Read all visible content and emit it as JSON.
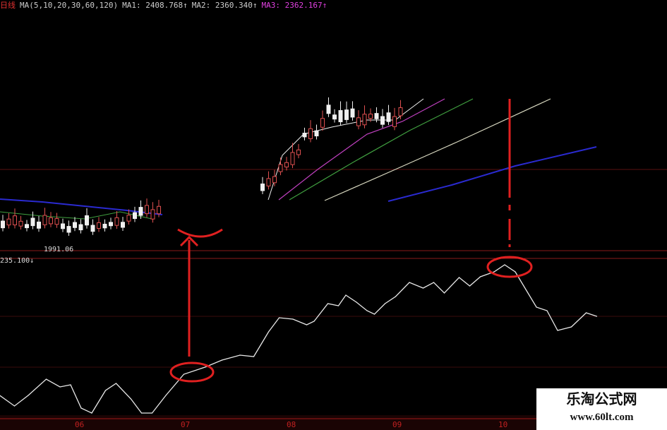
{
  "header": {
    "period": "日线",
    "ma_params": "MA(5,10,20,30,60,120)",
    "ma1": "MA1: 2408.768↑",
    "ma2": "MA2: 2360.340↑",
    "ma3": "MA3: 2362.167↑"
  },
  "annotations": {
    "low_price": "1991.06",
    "indicator_value": "235.100↓"
  },
  "colors": {
    "background": "#000000",
    "axis": "#a01818",
    "marker": "#e02020",
    "line": "#e8e8e8",
    "ma_blue": "#2a2ad0",
    "ma_green": "#40a040",
    "ma_magenta": "#c040c0"
  },
  "chart_data": {
    "type": "line",
    "title": "",
    "xlabel": "",
    "ylabel": "",
    "x_tick_labels": [
      "06",
      "07",
      "08",
      "09",
      "10"
    ],
    "x_ticks": [
      6,
      7,
      8,
      9,
      10
    ],
    "grid": false,
    "series": [
      {
        "x": [
          5.25,
          5.39,
          5.52,
          5.69,
          5.82,
          5.92,
          6.02,
          6.12,
          6.25,
          6.35,
          6.49,
          6.59,
          6.69,
          6.82,
          6.99,
          7.19,
          7.35,
          7.52,
          7.65,
          7.79,
          7.89,
          8.02,
          8.15,
          8.22,
          8.35,
          8.45,
          8.52,
          8.62,
          8.72,
          8.79,
          8.89,
          8.99,
          9.12,
          9.25,
          9.35,
          9.45,
          9.59,
          9.69,
          9.79,
          9.92,
          10.02,
          10.12,
          10.22,
          10.32,
          10.42,
          10.52,
          10.65,
          10.79,
          10.89
        ],
        "y": [
          15,
          7.5,
          15,
          26.5,
          21,
          22.5,
          6,
          2.5,
          18.5,
          23.5,
          12.5,
          2.5,
          2.5,
          15,
          30,
          35,
          40,
          43.5,
          42.5,
          60,
          70,
          69,
          65,
          67.5,
          80,
          78.5,
          86,
          81,
          75,
          72.5,
          80,
          85,
          95,
          91,
          95,
          87.5,
          98.5,
          92.5,
          99,
          102.5,
          107.5,
          102.5,
          90,
          77.5,
          75,
          61,
          63.5,
          73.5,
          71
        ]
      }
    ]
  },
  "watermark": {
    "name": "乐淘公式网",
    "url": "www.60lt.com"
  }
}
